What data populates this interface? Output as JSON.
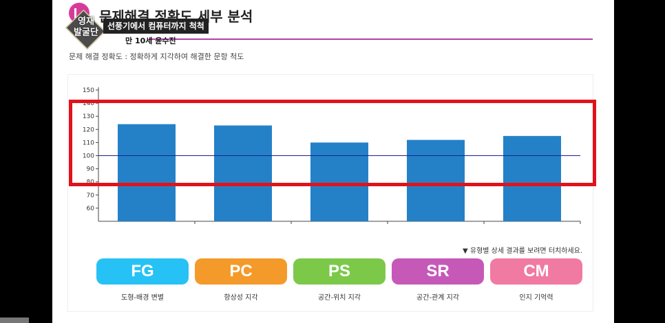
{
  "page": {
    "title": "문제해결 정확도 세부 분석",
    "subtitle": "문제 해결 정확도 : 정확하게 지각하여 해결한 문항 척도",
    "hint": "▼ 유형별 상세 결과를 보려면 터치하세요."
  },
  "broadcast": {
    "logo": "영재\n발굴단",
    "caption": "선풍기에서 컴퓨터까지 척척",
    "subcaption": "만 10세 윤수진"
  },
  "colors": {
    "bar": "#2481c8",
    "reference_line": "#1a1f8a",
    "highlight": "#e0121b",
    "fg": "#27c2f5",
    "pc": "#f49a2a",
    "ps": "#7cc94a",
    "sr": "#c659b8",
    "cm": "#f07aa2"
  },
  "types": [
    {
      "code": "FG",
      "label": "도형-배경 변별"
    },
    {
      "code": "PC",
      "label": "항상성 지각"
    },
    {
      "code": "PS",
      "label": "공간-위치 지각"
    },
    {
      "code": "SR",
      "label": "공간-관계 지각"
    },
    {
      "code": "CM",
      "label": "인지 기억력"
    }
  ],
  "chart_data": {
    "type": "bar",
    "categories": [
      "FG",
      "PC",
      "PS",
      "SR",
      "CM"
    ],
    "values": [
      124,
      123,
      110,
      112,
      115
    ],
    "ylim": [
      50,
      150
    ],
    "yticks": [
      60,
      70,
      80,
      90,
      100,
      110,
      120,
      130,
      140,
      150
    ],
    "reference_line": 100
  }
}
